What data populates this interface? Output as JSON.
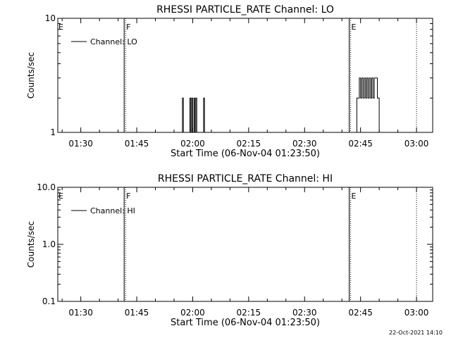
{
  "footer": {
    "timestamp": "22-Oct-2021 14:10"
  },
  "chart_data": [
    {
      "type": "line",
      "title": "RHESSI PARTICLE_RATE Channel: LO",
      "xlabel": "Start Time (06-Nov-04 01:23:50)",
      "ylabel": "Counts/sec",
      "yscale": "log",
      "ylim": [
        1,
        10
      ],
      "xlim": [
        "01:23:50",
        "03:04:20"
      ],
      "xticks": [
        "01:30",
        "01:45",
        "02:00",
        "02:15",
        "02:30",
        "02:45",
        "03:00"
      ],
      "yticks": [
        "1",
        "10"
      ],
      "legend": {
        "label": "Channel: LO",
        "placement": "top-left"
      },
      "grid": false,
      "markers": [
        {
          "label": "E",
          "time": "01:23:50",
          "style": "none"
        },
        {
          "label": "F",
          "time": "01:42:00",
          "style": "solid+dotted"
        },
        {
          "label": "E",
          "time": "02:42:20",
          "style": "solid+dotted"
        },
        {
          "label": "",
          "time": "03:00:00",
          "style": "dotted"
        }
      ],
      "series": [
        {
          "name": "Channel: LO",
          "points": [
            [
              "01:57:00",
              1
            ],
            [
              "01:57:15",
              2
            ],
            [
              "01:57:30",
              1
            ],
            [
              "01:59:00",
              1
            ],
            [
              "01:59:15",
              2
            ],
            [
              "01:59:30",
              1
            ],
            [
              "01:59:45",
              2
            ],
            [
              "02:00:00",
              1
            ],
            [
              "02:00:20",
              2
            ],
            [
              "02:00:35",
              1
            ],
            [
              "02:00:50",
              2
            ],
            [
              "02:01:05",
              1
            ],
            [
              "02:02:40",
              1
            ],
            [
              "02:02:55",
              2
            ],
            [
              "02:03:10",
              1
            ],
            [
              "02:43:00",
              1
            ],
            [
              "02:44:00",
              2
            ],
            [
              "02:44:40",
              3
            ],
            [
              "02:45:00",
              2
            ],
            [
              "02:45:20",
              3
            ],
            [
              "02:45:40",
              2
            ],
            [
              "02:46:00",
              3
            ],
            [
              "02:46:20",
              2
            ],
            [
              "02:46:40",
              3
            ],
            [
              "02:47:00",
              2
            ],
            [
              "02:47:20",
              3
            ],
            [
              "02:47:40",
              2
            ],
            [
              "02:48:00",
              3
            ],
            [
              "02:48:20",
              2
            ],
            [
              "02:48:40",
              3
            ],
            [
              "02:49:30",
              2
            ],
            [
              "02:50:00",
              1
            ]
          ]
        }
      ]
    },
    {
      "type": "line",
      "title": "RHESSI PARTICLE_RATE Channel: HI",
      "xlabel": "Start Time (06-Nov-04 01:23:50)",
      "ylabel": "Counts/sec",
      "yscale": "log",
      "ylim": [
        0.1,
        10
      ],
      "xlim": [
        "01:23:50",
        "03:04:20"
      ],
      "xticks": [
        "01:30",
        "01:45",
        "02:00",
        "02:15",
        "02:30",
        "02:45",
        "03:00"
      ],
      "yticks": [
        "0.1",
        "1.0",
        "10.0"
      ],
      "legend": {
        "label": "Channel: HI",
        "placement": "top-left"
      },
      "grid": false,
      "markers": [
        {
          "label": "E",
          "time": "01:23:50",
          "style": "none"
        },
        {
          "label": "F",
          "time": "01:42:00",
          "style": "solid+dotted"
        },
        {
          "label": "E",
          "time": "02:42:20",
          "style": "solid+dotted"
        },
        {
          "label": "",
          "time": "03:00:00",
          "style": "dotted"
        }
      ],
      "series": [
        {
          "name": "Channel: HI",
          "points": []
        }
      ]
    }
  ]
}
